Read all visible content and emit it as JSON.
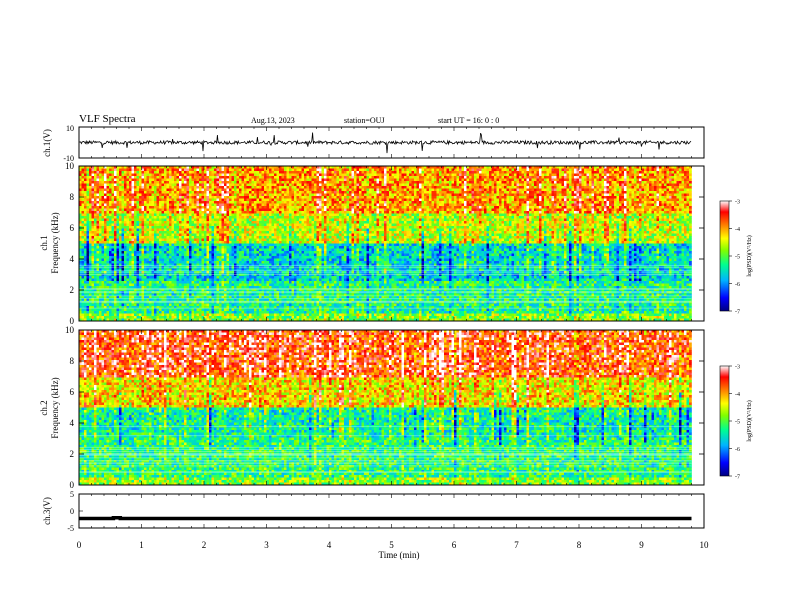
{
  "header": {
    "title": "VLF Spectra",
    "date": "Aug.13, 2023",
    "station": "station=OUJ",
    "start": "start UT =  16: 0  : 0"
  },
  "chart_data": [
    {
      "type": "line",
      "panel": "ch1-waveform",
      "ylabel": "ch.1(V)",
      "ylim": [
        -10,
        10
      ],
      "yticks": [
        "10",
        "-10"
      ],
      "xlim": [
        0,
        10
      ],
      "baseline": 0,
      "note_values": "dense noisy waveform centered near 0 V with spikes up to about ±8 V"
    },
    {
      "type": "heatmap",
      "panel": "ch1-spectrogram",
      "title": "ch.1",
      "ylabel": "Frequency (kHz)",
      "ylim": [
        0,
        10
      ],
      "yticks": [
        "0",
        "2",
        "4",
        "6",
        "8",
        "10"
      ],
      "xlim": [
        0,
        10
      ],
      "data_end_min": 9.8,
      "colorbar": {
        "label": "log(PSD)(V²/Hz)",
        "range": [
          -7,
          -3
        ],
        "ticks": [
          "-3",
          "-4",
          "-5",
          "-6",
          "-7"
        ],
        "colors": [
          "#000080",
          "#0000ff",
          "#00c0ff",
          "#00ff80",
          "#80ff00",
          "#ffff00",
          "#ff8000",
          "#ff0000",
          "#ffffff"
        ]
      },
      "levels_by_freq_kHz": [
        {
          "f": [
            0,
            0.5
          ],
          "log_psd": -4.8
        },
        {
          "f": [
            0.5,
            2.5
          ],
          "log_psd": -5.3
        },
        {
          "f": [
            2.5,
            5
          ],
          "log_psd": -5.6
        },
        {
          "f": [
            5,
            7
          ],
          "log_psd": -4.6
        },
        {
          "f": [
            7,
            10
          ],
          "log_psd": -4.0
        }
      ]
    },
    {
      "type": "heatmap",
      "panel": "ch2-spectrogram",
      "title": "ch.2",
      "ylabel": "Frequency (kHz)",
      "ylim": [
        0,
        10
      ],
      "yticks": [
        "0",
        "2",
        "4",
        "6",
        "8",
        "10"
      ],
      "xlim": [
        0,
        10
      ],
      "data_end_min": 9.8,
      "colorbar": {
        "label": "log(PSD)(V²/Hz)",
        "range": [
          -7,
          -3
        ],
        "ticks": [
          "-3",
          "-4",
          "-5",
          "-6",
          "-7"
        ]
      },
      "levels_by_freq_kHz": [
        {
          "f": [
            0,
            0.5
          ],
          "log_psd": -4.8
        },
        {
          "f": [
            0.5,
            3
          ],
          "log_psd": -5.2
        },
        {
          "f": [
            3,
            5
          ],
          "log_psd": -5.4
        },
        {
          "f": [
            5,
            7
          ],
          "log_psd": -4.3
        },
        {
          "f": [
            7,
            10
          ],
          "log_psd": -3.6
        }
      ]
    },
    {
      "type": "line",
      "panel": "ch3-waveform",
      "ylabel": "ch.3(V)",
      "ylim": [
        -5,
        5
      ],
      "yticks": [
        "5",
        "0",
        "-5"
      ],
      "xlim": [
        0,
        10
      ],
      "xlabel": "Time (min)",
      "xticks": [
        "0",
        "1",
        "2",
        "3",
        "4",
        "5",
        "6",
        "7",
        "8",
        "9",
        "10"
      ],
      "series": [
        {
          "x": [
            0,
            0.55,
            0.55,
            0.66,
            0.66,
            9.8
          ],
          "y": [
            -2.2,
            -2.2,
            -2.0,
            -2.0,
            -2.2,
            -2.2
          ]
        }
      ]
    }
  ]
}
